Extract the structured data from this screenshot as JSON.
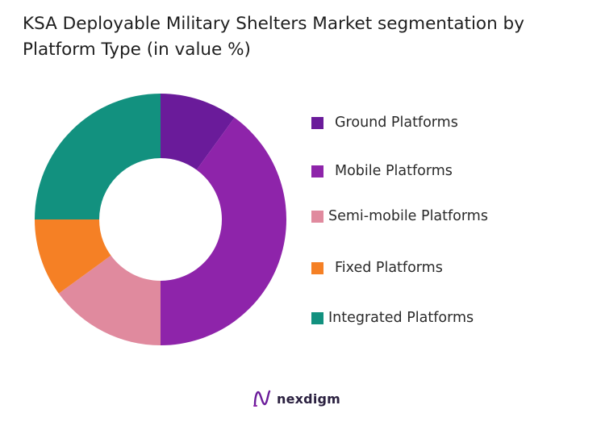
{
  "chart_data": {
    "type": "pie",
    "title_lines": [
      "KSA Deployable Military Shelters Market segmentation by",
      "Platform Type (in value %)"
    ],
    "categories": [
      "Ground Platforms",
      "Mobile Platforms",
      "Semi-mobile Platforms",
      "Fixed Platforms",
      "Integrated Platforms"
    ],
    "values": [
      10,
      40,
      15,
      10,
      25
    ],
    "colors": [
      "#6a1b9a",
      "#8e24aa",
      "#e08a9e",
      "#f58025",
      "#12917f"
    ],
    "donut": true,
    "legend_position": "right"
  },
  "brand": {
    "name": "nexdigm",
    "logo_icon": "nexdigm-logo-icon"
  }
}
